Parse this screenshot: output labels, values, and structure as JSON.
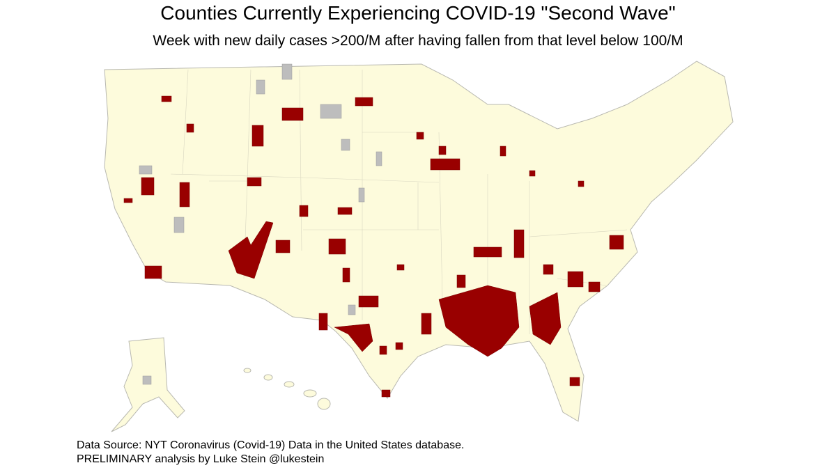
{
  "title": "Counties Currently Experiencing COVID-19 \"Second Wave\"",
  "subtitle": "Week with new daily cases >200/M after having fallen from that level below 100/M",
  "source": [
    "Data Source: NYT Coronavirus (Covid-19) Data in the United States database.",
    "PRELIMINARY analysis by Luke Stein @lukestein"
  ]
}
